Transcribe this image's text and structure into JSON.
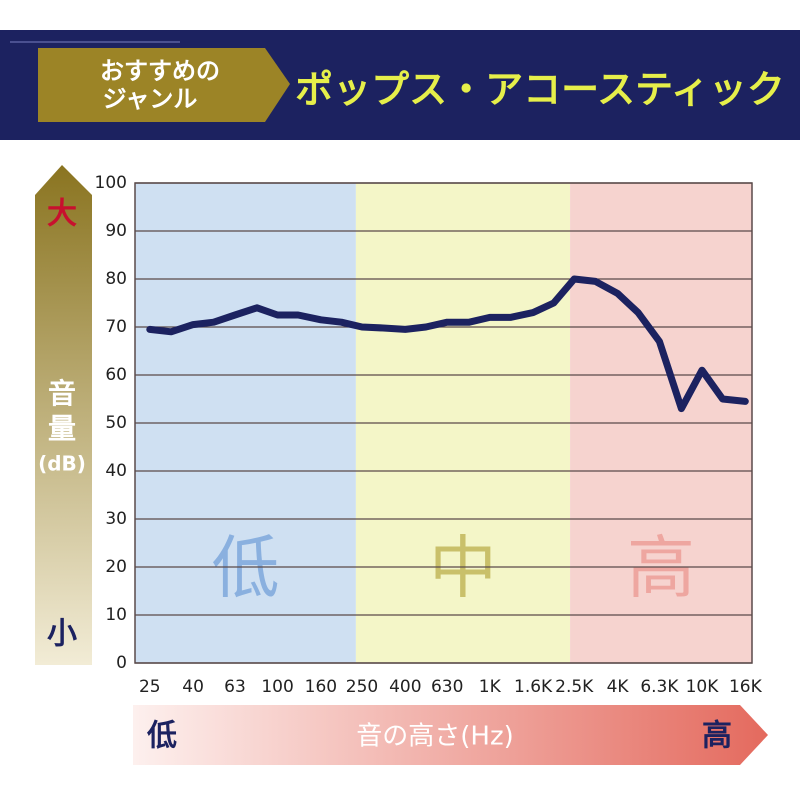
{
  "header": {
    "tag_lines": [
      "おすすめの",
      "ジャンル"
    ],
    "genre": "ポップス・アコースティック"
  },
  "chart_data": {
    "type": "line",
    "log_x": true,
    "color": "#1c2260",
    "grid": true,
    "y_label_lines": [
      "音",
      "量",
      "(dB)"
    ],
    "y_high": "大",
    "y_low": "小",
    "x_label": "音の高さ(Hz)",
    "x_low": "低",
    "x_high": "高",
    "bands": [
      {
        "label": "低",
        "color": "#cfe0f2",
        "label_color": "#8ab0df",
        "range": [
          21.3,
          234
        ]
      },
      {
        "label": "中",
        "color": "#f4f6c8",
        "label_color": "#c9c06a",
        "range": [
          234,
          2390
        ]
      },
      {
        "label": "高",
        "color": "#f6d3cf",
        "label_color": "#eea6a0",
        "range": [
          2390,
          17200
        ]
      }
    ],
    "x": [
      25,
      31.5,
      40,
      50,
      63,
      80,
      100,
      125,
      160,
      200,
      250,
      315,
      400,
      500,
      630,
      800,
      1000,
      1250,
      1600,
      2000,
      2500,
      3150,
      4000,
      5000,
      6300,
      8000,
      10000,
      12500,
      16000
    ],
    "values": [
      69.5,
      69,
      70.5,
      71,
      72.5,
      74,
      72.5,
      72.5,
      71.5,
      71,
      70,
      69.8,
      69.5,
      70,
      71,
      71,
      72,
      72,
      73,
      75,
      80,
      79.5,
      77,
      73,
      67,
      53,
      61,
      55,
      54.5
    ],
    "xlim": [
      21.3,
      17200
    ],
    "ylim": [
      0,
      100
    ],
    "xticks": [
      25,
      40,
      63,
      100,
      160,
      250,
      400,
      630,
      {
        "value": 1000,
        "label": "1K"
      },
      {
        "value": 1600,
        "label": "1.6K"
      },
      {
        "value": 2500,
        "label": "2.5K"
      },
      {
        "value": 4000,
        "label": "4K"
      },
      {
        "value": 6300,
        "label": "6.3K"
      },
      {
        "value": 10000,
        "label": "10K"
      },
      {
        "value": 16000,
        "label": "16K"
      }
    ],
    "yticks": [
      0,
      10,
      20,
      30,
      40,
      50,
      60,
      70,
      80,
      90,
      100
    ]
  }
}
